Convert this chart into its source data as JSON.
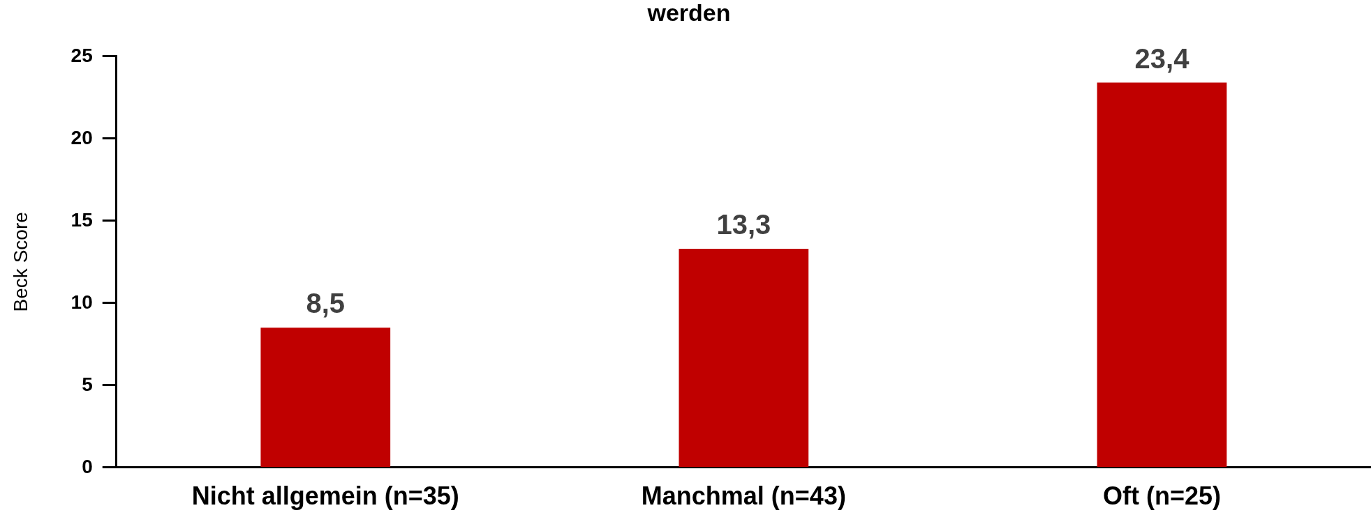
{
  "chart_data": {
    "type": "bar",
    "title": "werden",
    "ylabel": "Beck Score",
    "categories": [
      "Nicht allgemein (n=35)",
      "Manchmal (n=43)",
      "Oft (n=25)"
    ],
    "values": [
      8.5,
      13.3,
      23.4
    ],
    "color": "#c00000",
    "value_labels": [
      "8,5",
      "13,3",
      "23,4"
    ],
    "ylim": [
      0,
      25
    ],
    "yticks": [
      0,
      5,
      10,
      15,
      20,
      25
    ],
    "grid": false,
    "legend": false
  }
}
